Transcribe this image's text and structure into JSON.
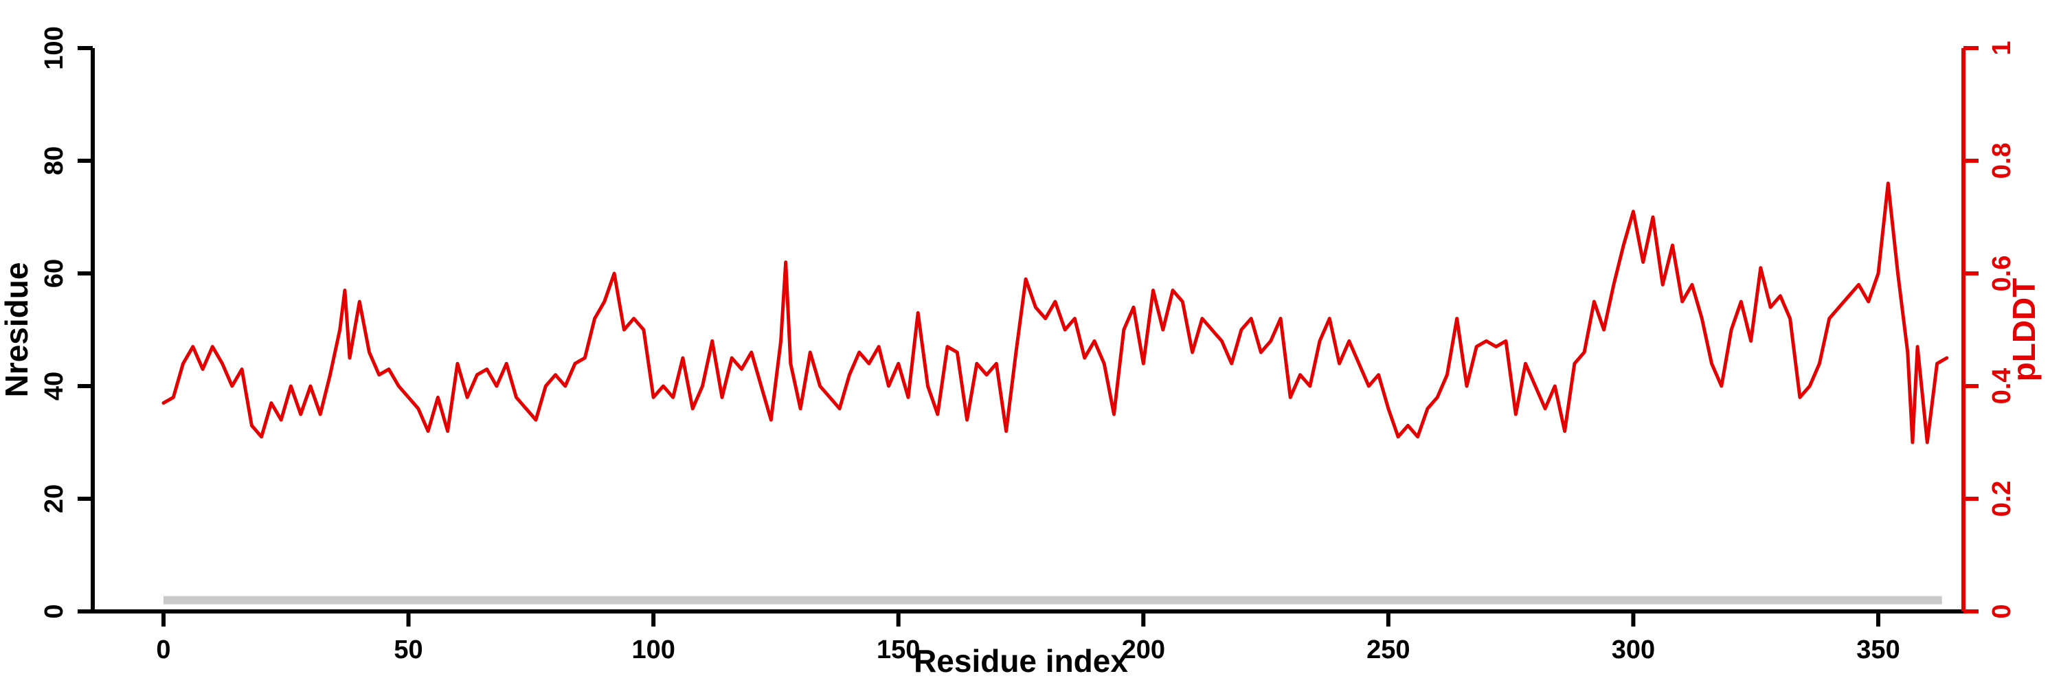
{
  "chart_data": {
    "type": "line",
    "title": "",
    "xlabel": "Residue index",
    "ylabel_left": "Nresidue",
    "ylabel_right": "pLDDT",
    "x_ticks": [
      0,
      50,
      100,
      150,
      200,
      250,
      300,
      350
    ],
    "y_left_ticks": [
      0,
      20,
      40,
      60,
      80,
      100
    ],
    "y_right_ticks": [
      0,
      0.2,
      0.4,
      0.6,
      0.8,
      1
    ],
    "xlim": [
      -14,
      367
    ],
    "ylim_left": [
      0,
      100
    ],
    "ylim_right": [
      0,
      1
    ],
    "grid": false,
    "legend": "none",
    "line_color": "#e50000",
    "right_axis_color": "#e50000",
    "annotations": [
      {
        "name": "sequence-coverage-bar",
        "type": "horizontal-bar",
        "x_start": 0,
        "x_end": 363,
        "y_left": 2,
        "color": "#c9c9c9"
      }
    ],
    "series": [
      {
        "name": "pLDDT",
        "axis": "right",
        "x": [
          0,
          2,
          4,
          6,
          8,
          10,
          12,
          14,
          16,
          18,
          20,
          22,
          24,
          26,
          28,
          30,
          32,
          34,
          36,
          37,
          38,
          40,
          42,
          44,
          46,
          48,
          50,
          52,
          54,
          56,
          58,
          60,
          62,
          64,
          66,
          68,
          70,
          72,
          74,
          76,
          78,
          80,
          82,
          84,
          86,
          88,
          90,
          92,
          94,
          96,
          98,
          100,
          102,
          104,
          106,
          108,
          110,
          112,
          114,
          116,
          118,
          120,
          122,
          124,
          126,
          127,
          128,
          130,
          132,
          134,
          136,
          138,
          140,
          142,
          144,
          146,
          148,
          150,
          152,
          154,
          156,
          158,
          160,
          162,
          164,
          166,
          168,
          170,
          172,
          174,
          176,
          178,
          180,
          182,
          184,
          186,
          188,
          190,
          192,
          194,
          196,
          198,
          200,
          202,
          204,
          206,
          208,
          210,
          212,
          214,
          216,
          218,
          220,
          222,
          224,
          226,
          228,
          230,
          232,
          234,
          236,
          238,
          240,
          242,
          244,
          246,
          248,
          250,
          252,
          254,
          256,
          258,
          260,
          262,
          264,
          266,
          268,
          270,
          272,
          274,
          276,
          278,
          280,
          282,
          284,
          286,
          288,
          290,
          292,
          294,
          296,
          298,
          300,
          302,
          304,
          306,
          308,
          310,
          312,
          314,
          316,
          318,
          320,
          322,
          324,
          326,
          328,
          330,
          332,
          334,
          336,
          338,
          340,
          342,
          344,
          346,
          348,
          350,
          352,
          354,
          356,
          357,
          358,
          360,
          362,
          364
        ],
        "values": [
          0.37,
          0.38,
          0.44,
          0.47,
          0.43,
          0.47,
          0.44,
          0.4,
          0.43,
          0.33,
          0.31,
          0.37,
          0.34,
          0.4,
          0.35,
          0.4,
          0.35,
          0.42,
          0.5,
          0.57,
          0.45,
          0.55,
          0.46,
          0.42,
          0.43,
          0.4,
          0.38,
          0.36,
          0.32,
          0.38,
          0.32,
          0.44,
          0.38,
          0.42,
          0.43,
          0.4,
          0.44,
          0.38,
          0.36,
          0.34,
          0.4,
          0.42,
          0.4,
          0.44,
          0.45,
          0.52,
          0.55,
          0.6,
          0.5,
          0.52,
          0.5,
          0.38,
          0.4,
          0.38,
          0.45,
          0.36,
          0.4,
          0.48,
          0.38,
          0.45,
          0.43,
          0.46,
          0.4,
          0.34,
          0.48,
          0.62,
          0.44,
          0.36,
          0.46,
          0.4,
          0.38,
          0.36,
          0.42,
          0.46,
          0.44,
          0.47,
          0.4,
          0.44,
          0.38,
          0.53,
          0.4,
          0.35,
          0.47,
          0.46,
          0.34,
          0.44,
          0.42,
          0.44,
          0.32,
          0.46,
          0.59,
          0.54,
          0.52,
          0.55,
          0.5,
          0.52,
          0.45,
          0.48,
          0.44,
          0.35,
          0.5,
          0.54,
          0.44,
          0.57,
          0.5,
          0.57,
          0.55,
          0.46,
          0.52,
          0.5,
          0.48,
          0.44,
          0.5,
          0.52,
          0.46,
          0.48,
          0.52,
          0.38,
          0.42,
          0.4,
          0.48,
          0.52,
          0.44,
          0.48,
          0.44,
          0.4,
          0.42,
          0.36,
          0.31,
          0.33,
          0.31,
          0.36,
          0.38,
          0.42,
          0.52,
          0.4,
          0.47,
          0.48,
          0.47,
          0.48,
          0.35,
          0.44,
          0.4,
          0.36,
          0.4,
          0.32,
          0.44,
          0.46,
          0.55,
          0.5,
          0.58,
          0.65,
          0.71,
          0.62,
          0.7,
          0.58,
          0.65,
          0.55,
          0.58,
          0.52,
          0.44,
          0.4,
          0.5,
          0.55,
          0.48,
          0.61,
          0.54,
          0.56,
          0.52,
          0.38,
          0.4,
          0.44,
          0.52,
          0.54,
          0.56,
          0.58,
          0.55,
          0.6,
          0.76,
          0.6,
          0.46,
          0.3,
          0.47,
          0.3,
          0.44,
          0.45
        ]
      }
    ]
  }
}
